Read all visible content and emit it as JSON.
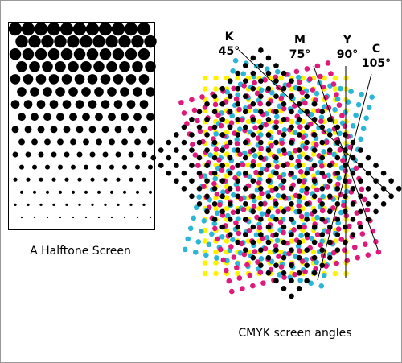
{
  "halftone": {
    "caption": "A Halftone Screen"
  },
  "cmyk": {
    "caption": "CMYK screen angles",
    "screens": [
      {
        "ink": "Y",
        "angle": {
          "value": 90,
          "label": "90°"
        },
        "color": "#fff200"
      },
      {
        "ink": "C",
        "angle": {
          "value": 105,
          "label": "105°"
        },
        "color": "#2bb5d6"
      },
      {
        "ink": "M",
        "angle": {
          "value": 75,
          "label": "75°"
        },
        "color": "#e0197d"
      },
      {
        "ink": "K",
        "angle": {
          "value": 45,
          "label": "45°"
        },
        "color": "#000000"
      }
    ]
  }
}
